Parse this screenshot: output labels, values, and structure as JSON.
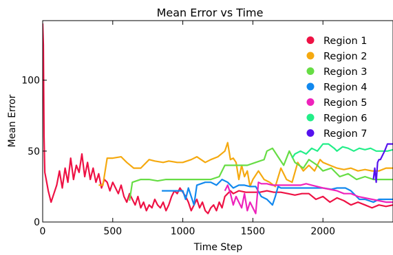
{
  "chart_data": {
    "type": "line",
    "title": "Mean Error vs Time",
    "xlabel": "Time Step",
    "ylabel": "Mean Error",
    "xlim": [
      0,
      2500
    ],
    "ylim": [
      0,
      142
    ],
    "xticks": [
      0,
      500,
      1000,
      1500,
      2000
    ],
    "yticks": [
      0,
      50,
      100
    ],
    "grid": false,
    "legend_position": "top-right",
    "series": [
      {
        "name": "Region 1",
        "color": "#ee1144",
        "x": [
          0,
          5,
          10,
          15,
          25,
          40,
          60,
          80,
          100,
          120,
          140,
          160,
          180,
          200,
          220,
          240,
          260,
          280,
          300,
          320,
          340,
          360,
          380,
          400,
          420,
          440,
          460,
          480,
          500,
          520,
          540,
          560,
          580,
          600,
          620,
          640,
          660,
          680,
          700,
          720,
          740,
          760,
          780,
          800,
          820,
          840,
          860,
          880,
          900,
          920,
          940,
          960,
          980,
          1000,
          1020,
          1040,
          1060,
          1080,
          1100,
          1120,
          1140,
          1160,
          1180,
          1200,
          1220,
          1240,
          1260,
          1280,
          1300,
          1320,
          1340,
          1360,
          1400,
          1450,
          1500,
          1550,
          1600,
          1650,
          1700,
          1750,
          1800,
          1850,
          1900,
          1950,
          2000,
          2050,
          2100,
          2150,
          2200,
          2250,
          2300,
          2350,
          2400,
          2450,
          2500
        ],
        "y": [
          140,
          125,
          60,
          35,
          30,
          22,
          14,
          20,
          26,
          36,
          24,
          38,
          28,
          45,
          30,
          40,
          35,
          48,
          32,
          42,
          30,
          38,
          28,
          34,
          24,
          30,
          28,
          22,
          28,
          24,
          20,
          26,
          18,
          14,
          20,
          16,
          12,
          18,
          10,
          14,
          8,
          12,
          10,
          16,
          12,
          10,
          14,
          8,
          12,
          18,
          22,
          20,
          24,
          21,
          18,
          14,
          8,
          12,
          16,
          10,
          14,
          8,
          6,
          10,
          12,
          8,
          14,
          10,
          18,
          20,
          22,
          20,
          22,
          21,
          21,
          21,
          22,
          21,
          21,
          20,
          19,
          20,
          20,
          16,
          18,
          14,
          17,
          15,
          12,
          14,
          12,
          10,
          12,
          11,
          12
        ]
      },
      {
        "name": "Region 2",
        "color": "#f5a90f",
        "x": [
          400,
          430,
          460,
          500,
          560,
          600,
          650,
          700,
          760,
          800,
          860,
          900,
          960,
          1000,
          1060,
          1100,
          1160,
          1200,
          1250,
          1300,
          1320,
          1340,
          1360,
          1380,
          1400,
          1420,
          1440,
          1460,
          1480,
          1500,
          1540,
          1580,
          1620,
          1660,
          1700,
          1740,
          1780,
          1820,
          1860,
          1900,
          1940,
          1980,
          2000,
          2050,
          2100,
          2150,
          2200,
          2250,
          2300,
          2350,
          2400,
          2450,
          2500
        ],
        "y": [
          26,
          26,
          45,
          45,
          46,
          42,
          38,
          38,
          44,
          43,
          42,
          43,
          42,
          42,
          44,
          46,
          42,
          44,
          46,
          50,
          56,
          44,
          45,
          42,
          30,
          40,
          32,
          36,
          25,
          30,
          36,
          30,
          28,
          25,
          38,
          30,
          28,
          42,
          36,
          40,
          36,
          44,
          42,
          40,
          38,
          37,
          38,
          36,
          37,
          36,
          36,
          38,
          38
        ]
      },
      {
        "name": "Region 3",
        "color": "#66dd44",
        "x": [
          620,
          640,
          700,
          760,
          820,
          880,
          960,
          1000,
          1080,
          1140,
          1200,
          1260,
          1300,
          1340,
          1400,
          1460,
          1520,
          1580,
          1600,
          1640,
          1680,
          1720,
          1760,
          1800,
          1860,
          1900,
          1960,
          2000,
          2060,
          2120,
          2180,
          2240,
          2300,
          2360,
          2420,
          2500
        ],
        "y": [
          15,
          28,
          30,
          30,
          29,
          30,
          30,
          30,
          30,
          30,
          30,
          32,
          40,
          40,
          40,
          40,
          42,
          44,
          50,
          52,
          46,
          40,
          50,
          42,
          38,
          44,
          40,
          36,
          38,
          32,
          34,
          30,
          32,
          30,
          30,
          30
        ]
      },
      {
        "name": "Region 4",
        "color": "#1188ee",
        "x": [
          850,
          900,
          960,
          1000,
          1020,
          1040,
          1080,
          1100,
          1160,
          1200,
          1240,
          1280,
          1320,
          1360,
          1400,
          1440,
          1480,
          1520,
          1560,
          1600,
          1640,
          1660,
          1680,
          1700,
          1760,
          1800,
          1860,
          1900,
          1960,
          2000,
          2060,
          2100,
          2160,
          2200,
          2260,
          2300,
          2360,
          2400,
          2450,
          2500
        ],
        "y": [
          22,
          22,
          22,
          22,
          16,
          24,
          12,
          26,
          28,
          28,
          26,
          30,
          28,
          24,
          26,
          26,
          25,
          25,
          18,
          16,
          12,
          18,
          25,
          24,
          24,
          24,
          24,
          24,
          24,
          24,
          23,
          24,
          24,
          22,
          16,
          16,
          14,
          16,
          16,
          16
        ]
      },
      {
        "name": "Region 5",
        "color": "#ee22bb",
        "x": [
          1300,
          1320,
          1340,
          1360,
          1380,
          1400,
          1420,
          1440,
          1460,
          1480,
          1500,
          1520,
          1540,
          1560,
          1600,
          1640,
          1680,
          1720,
          1760,
          1800,
          1840,
          1880,
          1920,
          1960,
          2000,
          2050,
          2100,
          2150,
          2200,
          2250,
          2300,
          2350,
          2400,
          2450,
          2500
        ],
        "y": [
          22,
          26,
          20,
          12,
          18,
          14,
          10,
          20,
          8,
          14,
          10,
          6,
          28,
          27,
          27,
          26,
          26,
          26,
          26,
          26,
          26,
          27,
          26,
          25,
          24,
          23,
          22,
          20,
          20,
          18,
          17,
          16,
          15,
          14,
          14
        ]
      },
      {
        "name": "Region 6",
        "color": "#22ee88",
        "x": [
          1780,
          1800,
          1840,
          1880,
          1920,
          1960,
          2000,
          2040,
          2080,
          2100,
          2140,
          2180,
          2220,
          2260,
          2300,
          2340,
          2380,
          2420,
          2460,
          2500
        ],
        "y": [
          45,
          48,
          50,
          48,
          52,
          50,
          55,
          55,
          52,
          50,
          53,
          52,
          50,
          52,
          51,
          52,
          50,
          50,
          50,
          51
        ]
      },
      {
        "name": "Region 7",
        "color": "#5511ee",
        "x": [
          2360,
          2370,
          2380,
          2390,
          2400,
          2410,
          2420,
          2440,
          2460,
          2480,
          2500
        ],
        "y": [
          30,
          38,
          28,
          42,
          44,
          44,
          46,
          50,
          55,
          55,
          55
        ]
      }
    ]
  }
}
